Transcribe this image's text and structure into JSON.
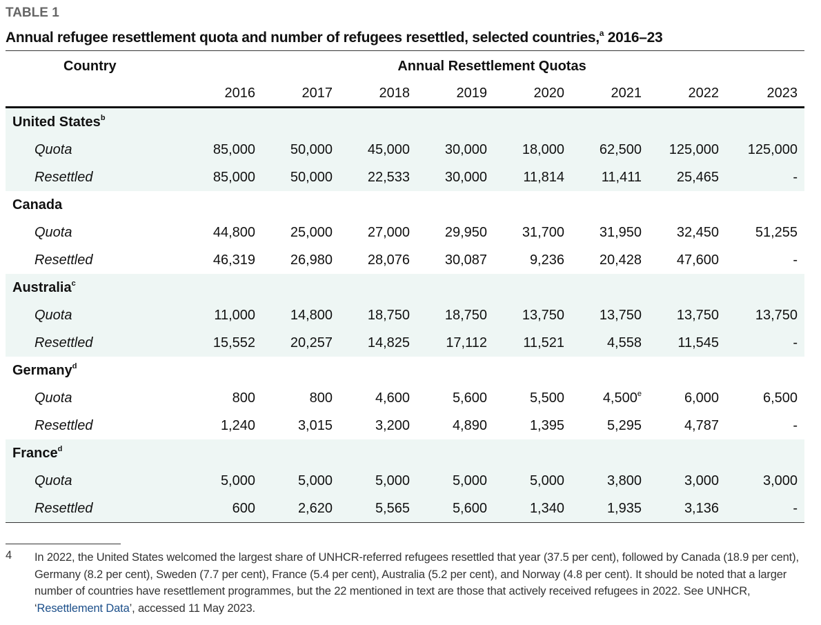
{
  "label": "TABLE 1",
  "title": {
    "text": "Annual refugee resettlement quota and number of refugees resettled, selected countries,",
    "note": "a",
    "years": " 2016–23"
  },
  "table": {
    "header": {
      "country": "Country",
      "group": "Annual Resettlement Quotas",
      "years": [
        "2016",
        "2017",
        "2018",
        "2019",
        "2020",
        "2021",
        "2022",
        "2023"
      ]
    },
    "groups": [
      {
        "country": "United States",
        "note": "b",
        "rows": [
          {
            "label": "Quota",
            "cells": [
              "85,000",
              "50,000",
              "45,000",
              "30,000",
              "18,000",
              "62,500",
              "125,000",
              "125,000"
            ]
          },
          {
            "label": "Resettled",
            "cells": [
              "85,000",
              "50,000",
              "22,533",
              "30,000",
              "11,814",
              "11,411",
              "25,465",
              "-"
            ]
          }
        ]
      },
      {
        "country": "Canada",
        "rows": [
          {
            "label": "Quota",
            "cells": [
              "44,800",
              "25,000",
              "27,000",
              "29,950",
              "31,700",
              "31,950",
              "32,450",
              "51,255"
            ]
          },
          {
            "label": "Resettled",
            "cells": [
              "46,319",
              "26,980",
              "28,076",
              "30,087",
              "9,236",
              "20,428",
              "47,600",
              "-"
            ]
          }
        ]
      },
      {
        "country": "Australia",
        "note": "c",
        "rows": [
          {
            "label": "Quota",
            "cells": [
              "11,000",
              "14,800",
              "18,750",
              "18,750",
              "13,750",
              "13,750",
              "13,750",
              "13,750"
            ]
          },
          {
            "label": "Resettled",
            "cells": [
              "15,552",
              "20,257",
              "14,825",
              "17,112",
              "11,521",
              "4,558",
              "11,545",
              "-"
            ]
          }
        ]
      },
      {
        "country": "Germany",
        "note": "d",
        "rows": [
          {
            "label": "Quota",
            "cells": [
              "800",
              "800",
              "4,600",
              "5,600",
              "5,500",
              {
                "text": "4,500",
                "note": "e"
              },
              "6,000",
              "6,500"
            ]
          },
          {
            "label": "Resettled",
            "cells": [
              "1,240",
              "3,015",
              "3,200",
              "4,890",
              "1,395",
              "5,295",
              "4,787",
              "-"
            ]
          }
        ]
      },
      {
        "country": "France",
        "note": "d",
        "rows": [
          {
            "label": "Quota",
            "cells": [
              "5,000",
              "5,000",
              "5,000",
              "5,000",
              "5,000",
              "3,800",
              "3,000",
              "3,000"
            ]
          },
          {
            "label": "Resettled",
            "cells": [
              "600",
              "2,620",
              "5,565",
              "5,600",
              "1,340",
              "1,935",
              "3,136",
              "-"
            ]
          }
        ]
      }
    ]
  },
  "footnote": {
    "number": "4",
    "text": "In 2022, the United States welcomed the largest share of UNHCR-referred refugees resettled that year (37.5 per cent), followed by Canada (18.9 per cent), Germany (8.2 per cent), Sweden (7.7 per cent), France (5.4 per cent), Australia (5.2 per cent), and Norway (4.8 per cent). It should be noted that a larger number of countries have resettlement programmes, but the 22 mentioned in text are those that actively received refugees in 2022. See UNHCR, ‘",
    "link": "Resettlement Data",
    "end": "’, accessed 11 May 2023."
  }
}
